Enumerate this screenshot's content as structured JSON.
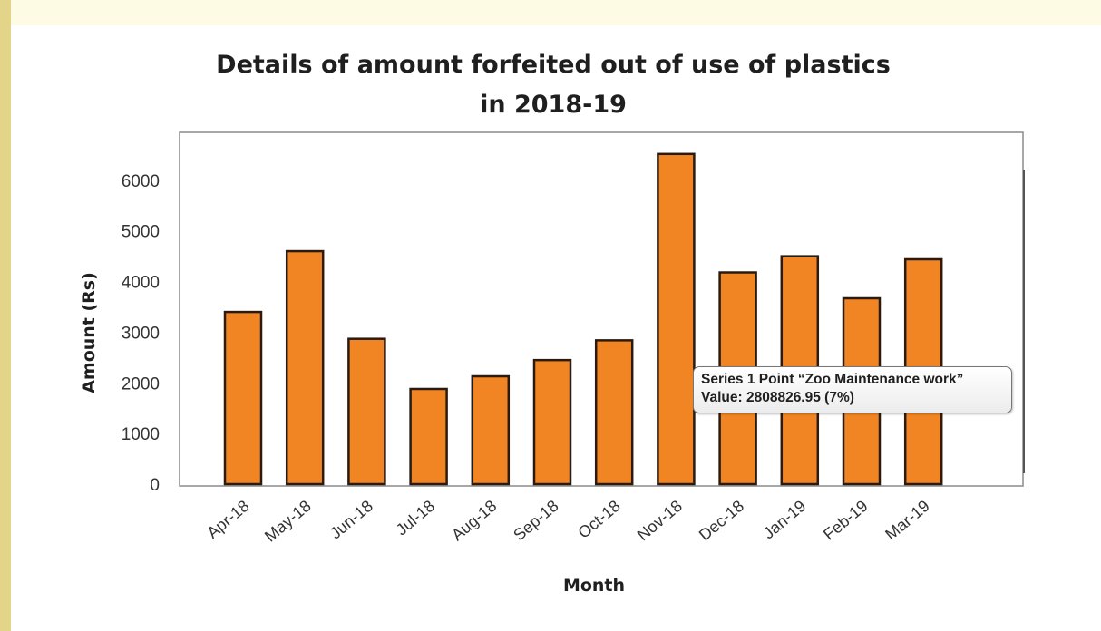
{
  "chart_data": {
    "type": "bar",
    "title_lines": [
      "Details of amount forfeited out of  use of plastics",
      "in 2018-19"
    ],
    "xlabel": "Month",
    "ylabel": "Amount (Rs)",
    "categories": [
      "Apr-18",
      "May-18",
      "Jun-18",
      "Jul-18",
      "Aug-18",
      "Sep-18",
      "Oct-18",
      "Nov-18",
      "Dec-18",
      "Jan-19",
      "Feb-19",
      "Mar-19"
    ],
    "values": [
      3400,
      4600,
      2870,
      1880,
      2130,
      2450,
      2840,
      6520,
      4180,
      4500,
      3670,
      4440
    ],
    "ylim": [
      0,
      7000
    ],
    "yticks": [
      0,
      1000,
      2000,
      3000,
      4000,
      5000,
      6000
    ],
    "grid": false,
    "bar_color": "#f28523",
    "bar_edge_color": "#2b1a10"
  },
  "tooltip": {
    "line1": "Series 1 Point “Zoo Maintenance work”",
    "line2": "Value: 2808826.95 (7%)"
  }
}
